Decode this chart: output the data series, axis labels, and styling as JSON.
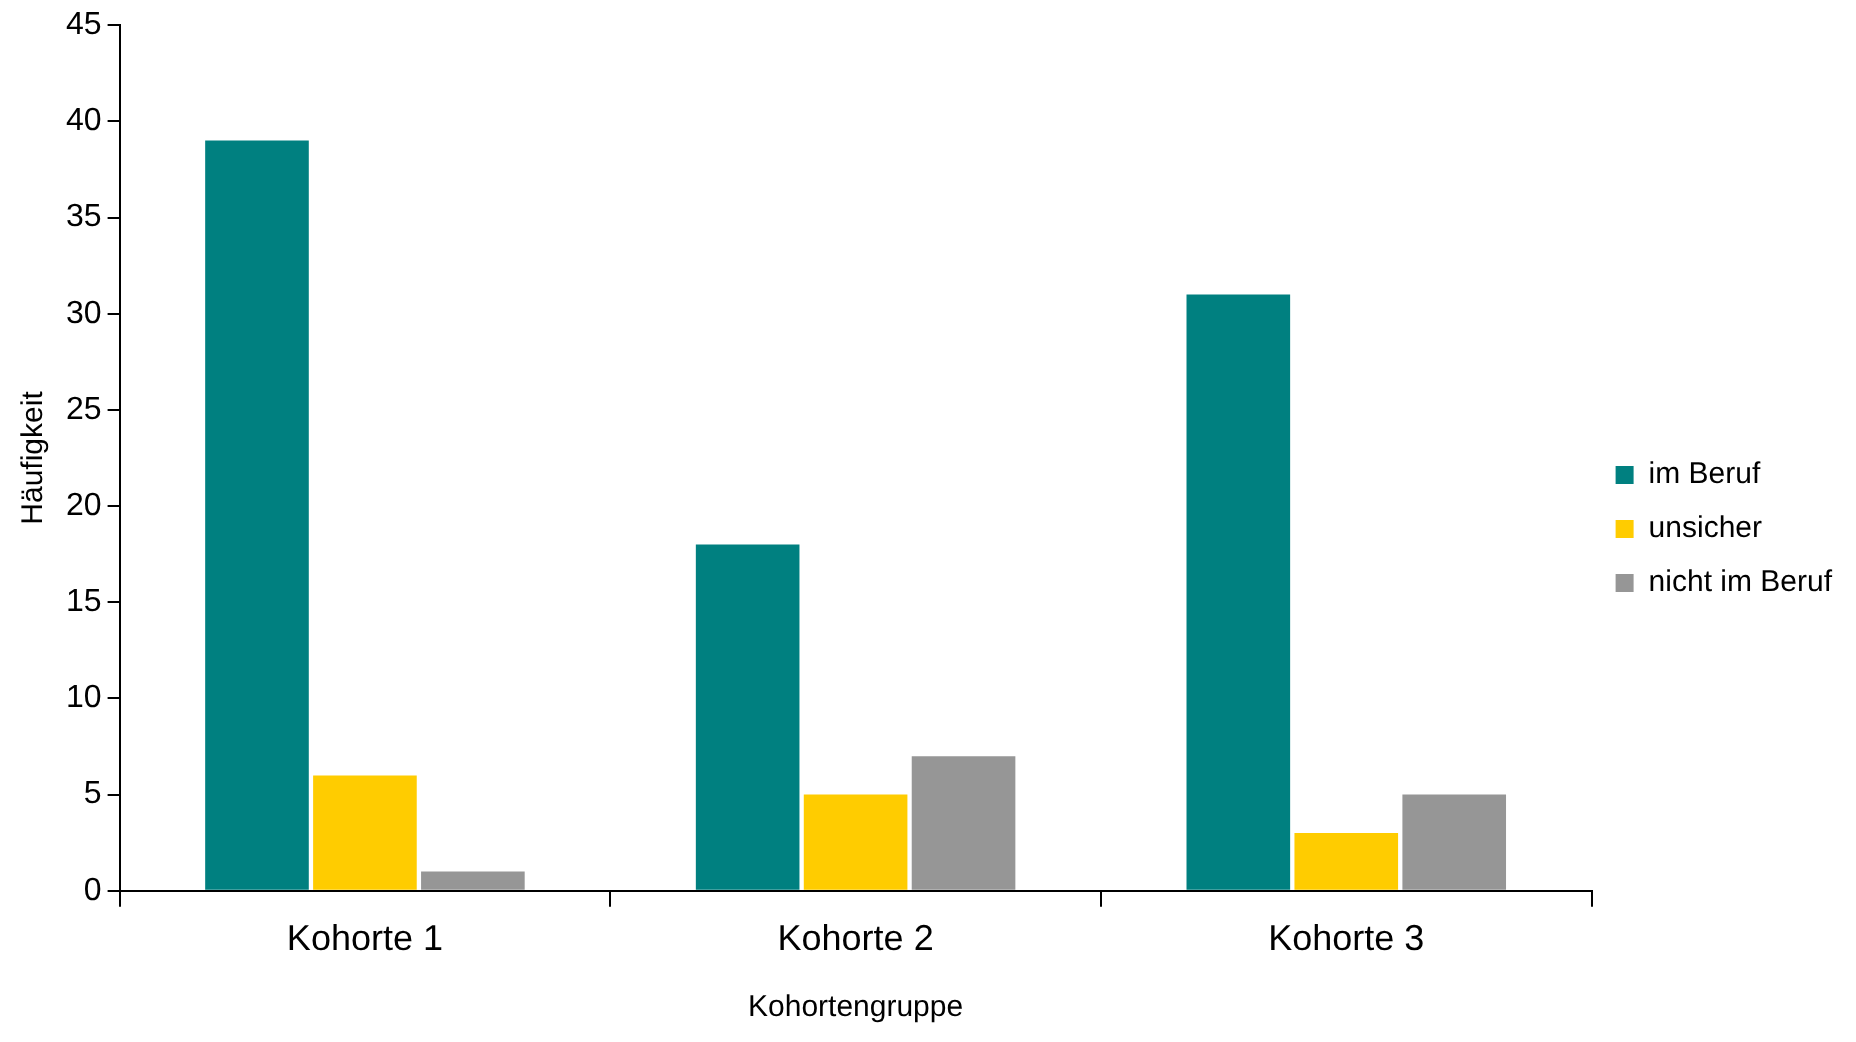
{
  "chart_data": {
    "type": "bar",
    "xlabel": "Kohortengruppe",
    "ylabel": "Häufigkeit",
    "categories": [
      "Kohorte 1",
      "Kohorte 2",
      "Kohorte 3"
    ],
    "series": [
      {
        "name": "im Beruf",
        "color": "#008080",
        "values": [
          39,
          18,
          31
        ]
      },
      {
        "name": "unsicher",
        "color": "#ffcc00",
        "values": [
          6,
          5,
          3
        ]
      },
      {
        "name": "nicht im Beruf",
        "color": "#969696",
        "values": [
          1,
          7,
          5
        ]
      }
    ],
    "ylim": [
      0,
      45
    ],
    "yticks": [
      0,
      5,
      10,
      15,
      20,
      25,
      30,
      35,
      40,
      45
    ],
    "grid": false,
    "legend": "right"
  }
}
